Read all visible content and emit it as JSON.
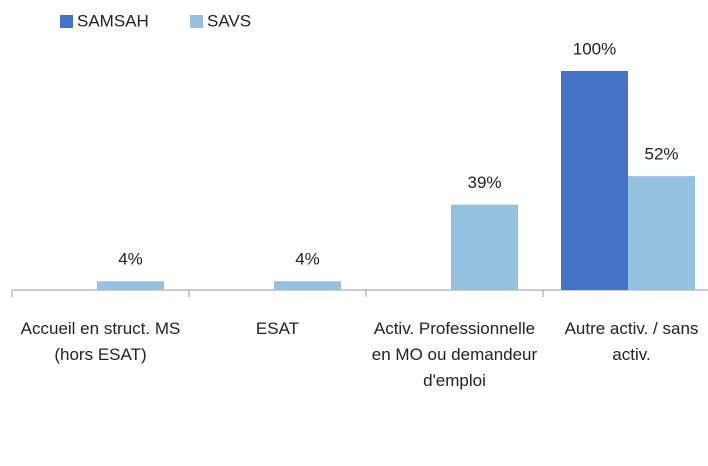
{
  "chart_data": {
    "type": "bar",
    "categories": [
      "Accueil en struct. MS (hors ESAT)",
      "ESAT",
      "Activ. Professionnelle en MO ou demandeur d'emploi",
      "Autre activ. / sans activ."
    ],
    "series": [
      {
        "name": "SAMSAH",
        "color": "#4472c4",
        "values": [
          null,
          null,
          null,
          100
        ],
        "value_labels": [
          null,
          null,
          null,
          "100%"
        ]
      },
      {
        "name": "SAVS",
        "color": "#95c1e1",
        "values": [
          4,
          4,
          39,
          52
        ],
        "value_labels": [
          "4%",
          "4%",
          "39%",
          "52%"
        ]
      }
    ],
    "ylim": [
      0,
      100
    ]
  }
}
